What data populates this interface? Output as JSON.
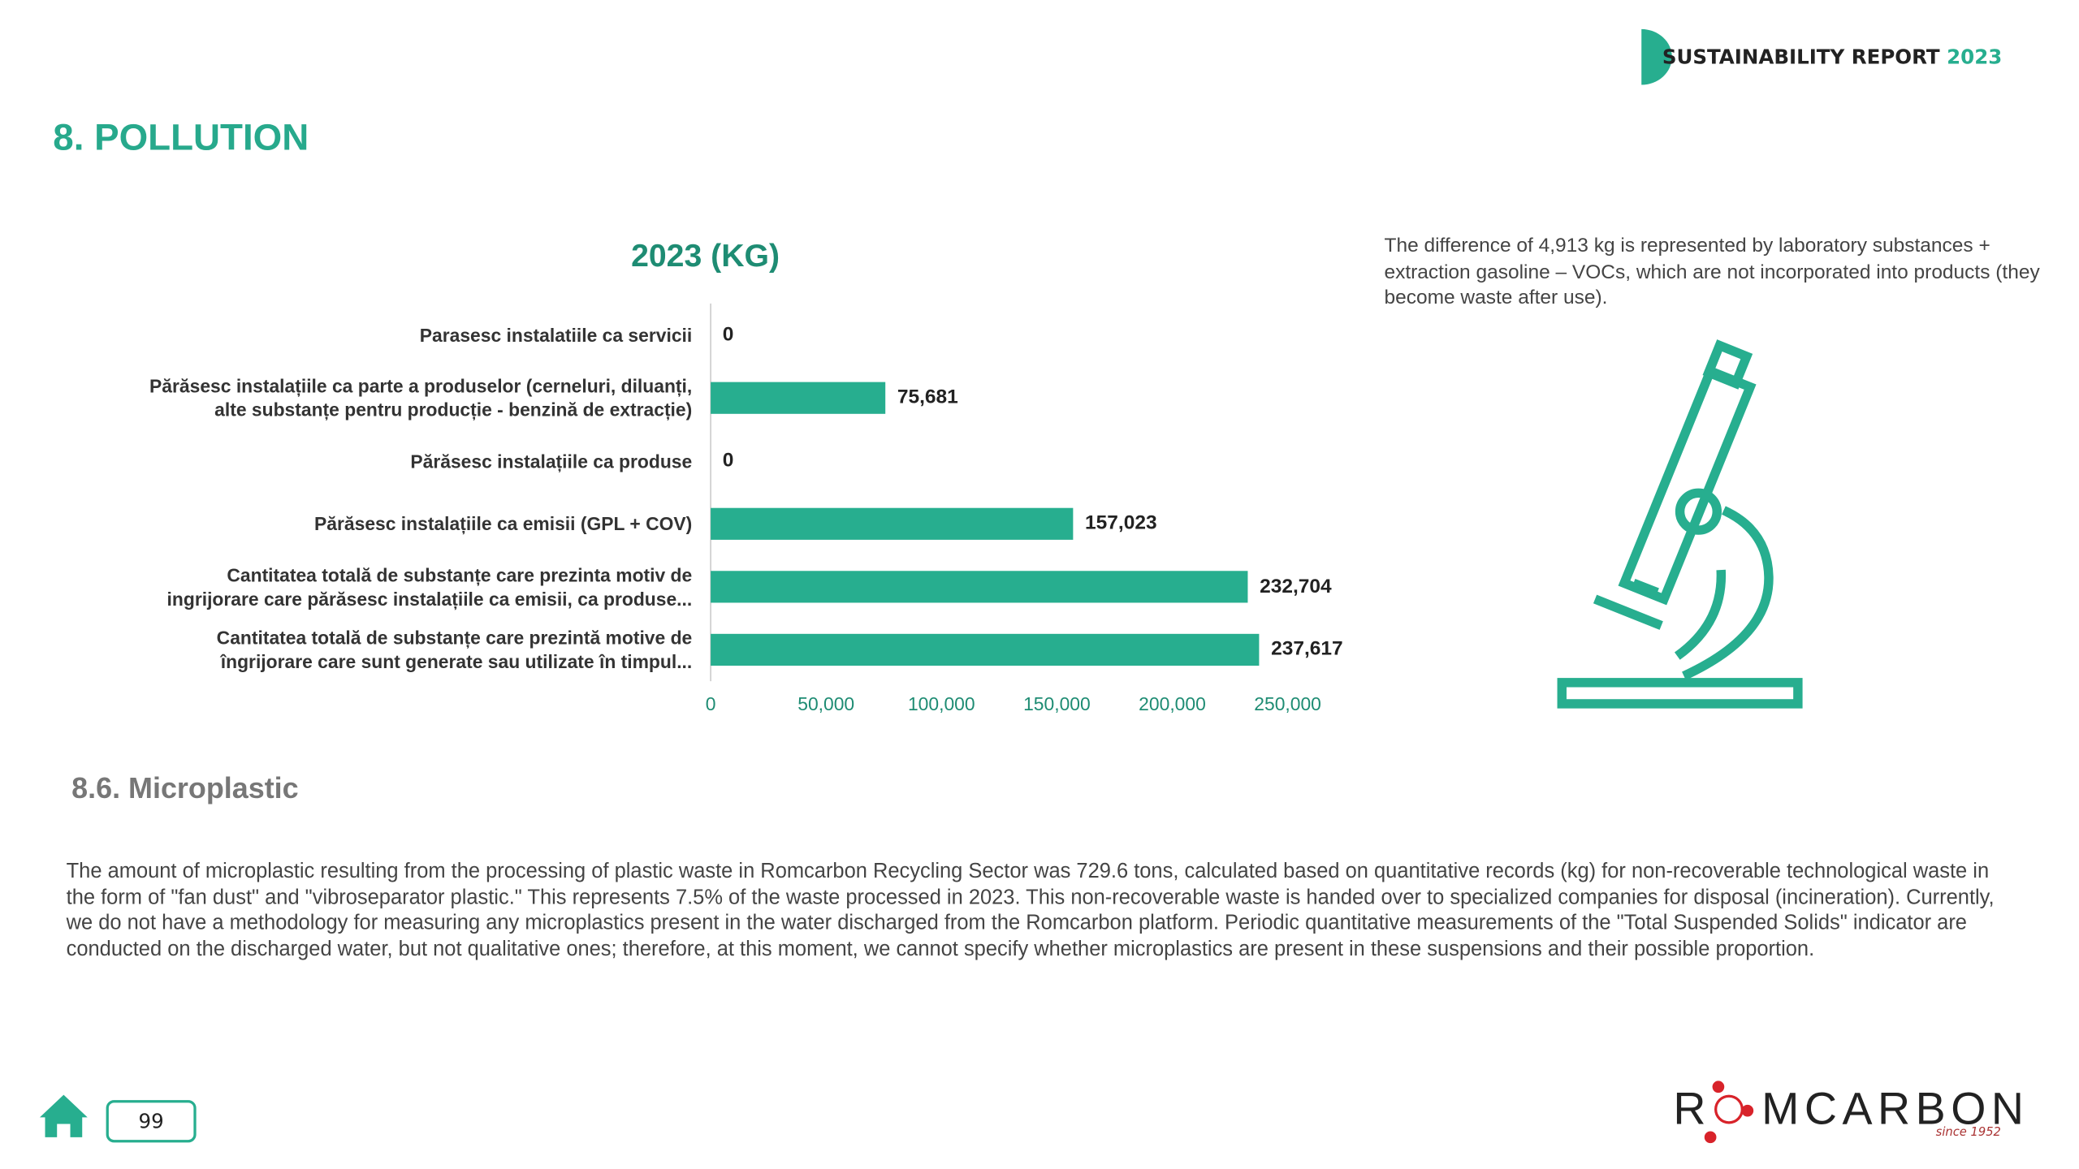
{
  "header": {
    "title": "SUSTAINABILITY REPORT",
    "year": "2023"
  },
  "section_title": "8. POLLUTION",
  "chart_data": {
    "type": "bar",
    "orientation": "horizontal",
    "title": "2023 (KG)",
    "categories": [
      "Parasesc instalatiile ca servicii",
      "Părăsesc instalațiile ca parte a produselor (cerneluri, diluanți,\nalte substanțe pentru producție - benzină de extracție)",
      "Părăsesc instalațiile ca produse",
      "Părăsesc instalațiile ca emisii (GPL + COV)",
      "Cantitatea totală de substanțe care prezinta motiv de\ningrijorare care părăsesc instalațiile ca emisii, ca produse...",
      "Cantitatea totală de substanțe care prezintă motive de\nîngrijorare care sunt generate sau utilizate în timpul..."
    ],
    "values": [
      0,
      75681,
      0,
      157023,
      232704,
      237617
    ],
    "value_labels": [
      "0",
      "75,681",
      "0",
      "157,023",
      "232,704",
      "237,617"
    ],
    "color": "#27ae8f",
    "xlim": [
      0,
      270000
    ],
    "xticks": [
      0,
      {
        "value": 50000,
        "label": "50,000"
      },
      {
        "value": 100000,
        "label": "100,000"
      },
      {
        "value": 150000,
        "label": "150,000"
      },
      {
        "value": 200000,
        "label": "200,000"
      },
      {
        "value": 250000,
        "label": "250,000"
      }
    ]
  },
  "note": "The difference of 4,913 kg is represented by laboratory substances + extraction gasoline – VOCs, which are not incorporated into products (they become waste after use).",
  "subsection": {
    "title": "8.6. Microplastic",
    "text": "The amount of microplastic resulting from the processing of plastic waste in Romcarbon Recycling Sector was 729.6 tons, calculated based on quantitative records (kg) for non-recoverable technological waste in the form of \"fan dust\" and \"vibroseparator plastic.\" This represents 7.5% of the waste processed in 2023. This non-recoverable waste is handed over to specialized companies for disposal (incineration). Currently, we do not have a methodology for measuring any microplastics present in the water discharged from the Romcarbon platform. Periodic quantitative measurements of the \"Total Suspended Solids\" indicator are conducted on the discharged water, but not qualitative ones; therefore, at this moment, we cannot specify whether microplastics are present in these suspensions and their possible proportion."
  },
  "footer": {
    "page": "99",
    "logo_left": "R",
    "logo_right": "MCARBON",
    "since": "since 1952"
  }
}
